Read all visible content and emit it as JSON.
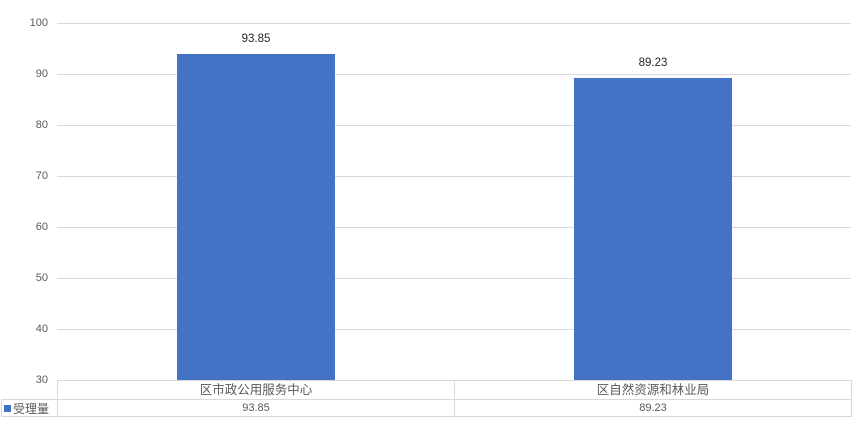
{
  "chart_data": {
    "type": "bar",
    "title": "",
    "xlabel": "",
    "ylabel": "",
    "categories": [
      "区市政公用服务中心",
      "区自然资源和林业局"
    ],
    "series": [
      {
        "name": "受理量",
        "values": [
          93.85,
          89.23
        ],
        "color": "#4472c4"
      }
    ],
    "data_labels": [
      "93.85",
      "89.23"
    ],
    "ylim": [
      30,
      100
    ],
    "yticks": [
      30,
      40,
      50,
      60,
      70,
      80,
      90,
      100
    ],
    "grid": true,
    "legend_position": "bottom-left-table",
    "gridline_color": "#d9d9d9",
    "axis_text_color": "#595959",
    "label_text_color": "#262626"
  },
  "data_table": {
    "legend_label": "受理量",
    "legend_marker_color": "#4472c4",
    "columns": [
      "区市政公用服务中心",
      "区自然资源和林业局"
    ],
    "rows": [
      {
        "label": "受理量",
        "values": [
          "93.85",
          "89.23"
        ]
      }
    ]
  }
}
